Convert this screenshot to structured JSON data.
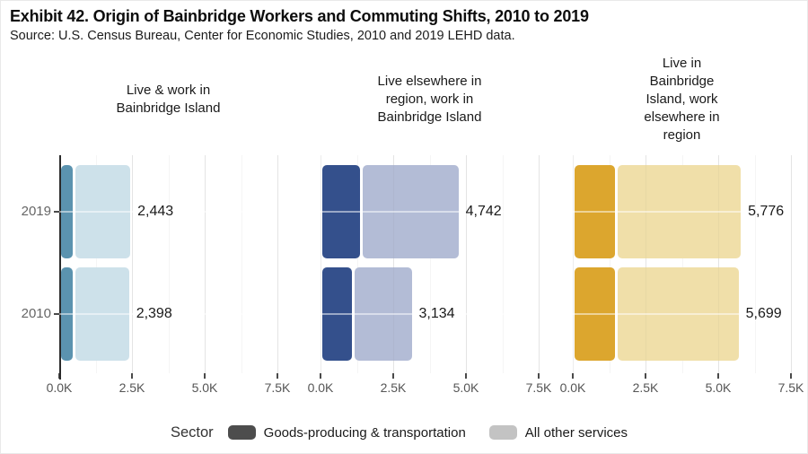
{
  "header": {
    "title": "Exhibit 42. Origin of Bainbridge Workers and Commuting Shifts, 2010 to 2019",
    "source": "Source: U.S. Census Bureau, Center for Economic Studies, 2010 and 2019 LEHD data."
  },
  "chart_data": {
    "type": "bar",
    "orientation": "horizontal",
    "stacked": true,
    "categories": [
      "2019",
      "2010"
    ],
    "x_ticks": [
      "0.0K",
      "2.5K",
      "5.0K",
      "7.5K"
    ],
    "xlim": [
      0,
      7500
    ],
    "grid": true,
    "legend_position": "bottom",
    "panels": [
      {
        "title_lines": [
          "Live & work in",
          "Bainbridge Island"
        ],
        "totals": [
          2443,
          2398
        ],
        "total_labels": [
          "2,443",
          "2,398"
        ],
        "series": [
          {
            "name": "Goods-producing & transportation",
            "values": [
              420,
              410
            ]
          },
          {
            "name": "All other services",
            "values": [
              2023,
              1988
            ]
          }
        ],
        "colors": {
          "goods": "#5b93af",
          "services": "#cde1ea"
        }
      },
      {
        "title_lines": [
          "Live elsewhere in",
          "region, work in",
          "Bainbridge Island"
        ],
        "totals": [
          4742,
          3134
        ],
        "total_labels": [
          "4,742",
          "3,134"
        ],
        "series": [
          {
            "name": "Goods-producing & transportation",
            "values": [
              1300,
              1030
            ]
          },
          {
            "name": "All other services",
            "values": [
              3442,
              2104
            ]
          }
        ],
        "colors": {
          "goods": "#34508c",
          "services": "#b3bcd6"
        }
      },
      {
        "title_lines": [
          "Live in",
          "Bainbridge",
          "Island, work",
          "elsewhere in",
          "region"
        ],
        "totals": [
          5776,
          5699
        ],
        "total_labels": [
          "5,776",
          "5,699"
        ],
        "series": [
          {
            "name": "Goods-producing & transportation",
            "values": [
              1400,
              1400
            ]
          },
          {
            "name": "All other services",
            "values": [
              4376,
              4299
            ]
          }
        ],
        "colors": {
          "goods": "#dca62e",
          "services": "#f0dfa9"
        }
      }
    ],
    "legend": {
      "title": "Sector",
      "items": [
        {
          "label": "Goods-producing & transportation",
          "color": "#4d4d4d"
        },
        {
          "label": "All other services",
          "color": "#c3c3c3"
        }
      ]
    }
  }
}
